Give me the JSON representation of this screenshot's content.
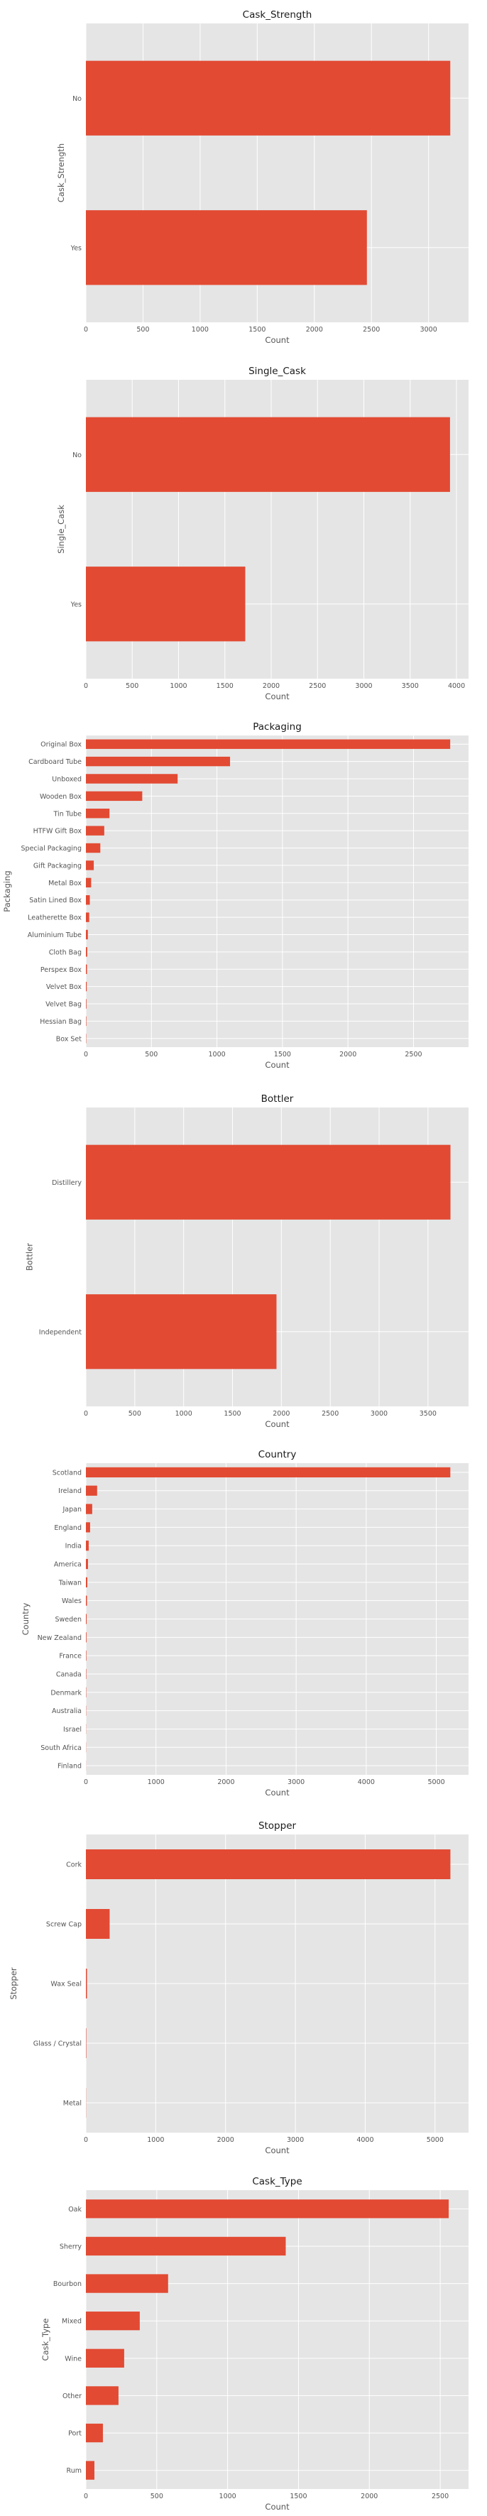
{
  "chart_data": [
    {
      "type": "bar",
      "orientation": "horizontal",
      "title": "Cask_Strength",
      "xlabel": "Count",
      "ylabel": "Cask_Strength",
      "categories": [
        "No",
        "Yes"
      ],
      "values": [
        3190,
        2460
      ],
      "xlim": [
        0,
        3350
      ],
      "xticks": [
        0,
        500,
        1000,
        1500,
        2000,
        2500,
        3000
      ],
      "bar_color": "#e24a33",
      "grid": true
    },
    {
      "type": "bar",
      "orientation": "horizontal",
      "title": "Single_Cask",
      "xlabel": "Count",
      "ylabel": "Single_Cask",
      "categories": [
        "No",
        "Yes"
      ],
      "values": [
        3930,
        1720
      ],
      "xlim": [
        0,
        4130
      ],
      "xticks": [
        0,
        500,
        1000,
        1500,
        2000,
        2500,
        3000,
        3500,
        4000
      ],
      "bar_color": "#e24a33",
      "grid": true
    },
    {
      "type": "bar",
      "orientation": "horizontal",
      "title": "Packaging",
      "xlabel": "Count",
      "ylabel": "Packaging",
      "categories": [
        "Original Box",
        "Cardboard Tube",
        "Unboxed",
        "Wooden Box",
        "Tin Tube",
        "HTFW Gift Box",
        "Special Packaging",
        "Gift Packaging",
        "Metal Box",
        "Satin Lined Box",
        "Leatherette Box",
        "Aluminium Tube",
        "Cloth Bag",
        "Perspex Box",
        "Velvet Box",
        "Velvet Bag",
        "Hessian Bag",
        "Box Set"
      ],
      "values": [
        2780,
        1100,
        700,
        430,
        180,
        140,
        110,
        60,
        40,
        30,
        25,
        15,
        10,
        8,
        6,
        4,
        3,
        2
      ],
      "xlim": [
        0,
        2920
      ],
      "xticks": [
        0,
        500,
        1000,
        1500,
        2000,
        2500
      ],
      "bar_color": "#e24a33",
      "grid": true
    },
    {
      "type": "bar",
      "orientation": "horizontal",
      "title": "Bottler",
      "xlabel": "Count",
      "ylabel": "Bottler",
      "categories": [
        "Distillery",
        "Independent"
      ],
      "values": [
        3730,
        1950
      ],
      "xlim": [
        0,
        3915
      ],
      "xticks": [
        0,
        500,
        1000,
        1500,
        2000,
        2500,
        3000,
        3500
      ],
      "bar_color": "#e24a33",
      "grid": true
    },
    {
      "type": "bar",
      "orientation": "horizontal",
      "title": "Country",
      "xlabel": "Count",
      "ylabel": "Country",
      "categories": [
        "Scotland",
        "Ireland",
        "Japan",
        "England",
        "India",
        "America",
        "Taiwan",
        "Wales",
        "Sweden",
        "New Zealand",
        "France",
        "Canada",
        "Denmark",
        "Australia",
        "Israel",
        "South Africa",
        "Finland"
      ],
      "values": [
        5200,
        160,
        90,
        60,
        40,
        30,
        20,
        15,
        10,
        8,
        6,
        5,
        4,
        3,
        2,
        2,
        1
      ],
      "xlim": [
        0,
        5460
      ],
      "xticks": [
        0,
        1000,
        2000,
        3000,
        4000,
        5000
      ],
      "bar_color": "#e24a33",
      "grid": true
    },
    {
      "type": "bar",
      "orientation": "horizontal",
      "title": "Stopper",
      "xlabel": "Count",
      "ylabel": "Stopper",
      "categories": [
        "Cork",
        "Screw Cap",
        "Wax Seal",
        "Glass / Crystal",
        "Metal"
      ],
      "values": [
        5220,
        340,
        15,
        5,
        2
      ],
      "xlim": [
        0,
        5480
      ],
      "xticks": [
        0,
        1000,
        2000,
        3000,
        4000,
        5000
      ],
      "bar_color": "#e24a33",
      "grid": true
    },
    {
      "type": "bar",
      "orientation": "horizontal",
      "title": "Cask_Type",
      "xlabel": "Count",
      "ylabel": "Cask_Type",
      "categories": [
        "Oak",
        "Sherry",
        "Bourbon",
        "Mixed",
        "Wine",
        "Other",
        "Port",
        "Rum"
      ],
      "values": [
        2560,
        1410,
        580,
        380,
        270,
        230,
        120,
        60
      ],
      "xlim": [
        0,
        2700
      ],
      "xticks": [
        0,
        500,
        1000,
        1500,
        2000,
        2500
      ],
      "bar_color": "#e24a33",
      "grid": true
    }
  ]
}
